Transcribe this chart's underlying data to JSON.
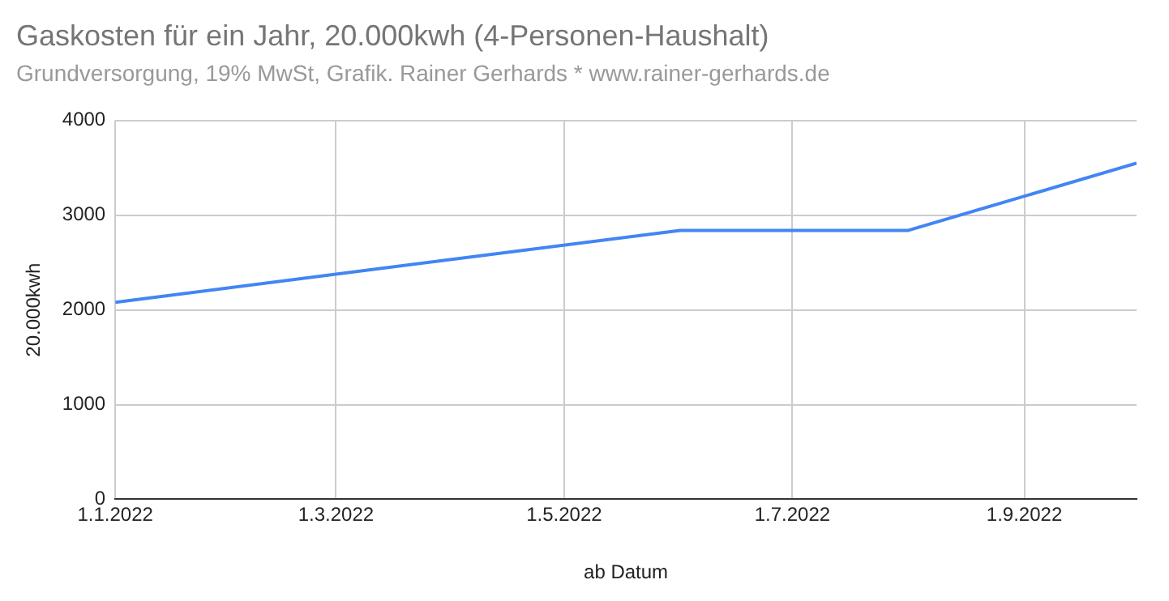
{
  "chart_data": {
    "type": "line",
    "title": "Gaskosten für ein Jahr, 20.000kwh (4-Personen-Haushalt)",
    "subtitle": "Grundversorgung, 19% MwSt, Grafik. Rainer Gerhards * www.rainer-gerhards.de",
    "xlabel": "ab Datum",
    "ylabel": "20.000kwh",
    "x": [
      "2022-01-01",
      "2022-06-01",
      "2022-08-01",
      "2022-10-01"
    ],
    "series": [
      {
        "color": "#4285f4",
        "values": [
          2080,
          2840,
          2840,
          3550
        ]
      }
    ],
    "xlim": [
      "2022-01-01",
      "2022-10-01"
    ],
    "xticks": [
      {
        "value": "2022-01-01",
        "label": "1.1.2022"
      },
      {
        "value": "2022-03-01",
        "label": "1.3.2022"
      },
      {
        "value": "2022-05-01",
        "label": "1.5.2022"
      },
      {
        "value": "2022-07-01",
        "label": "1.7.2022"
      },
      {
        "value": "2022-09-01",
        "label": "1.9.2022"
      }
    ],
    "ylim": [
      0,
      4000
    ],
    "yticks": [
      0,
      1000,
      2000,
      3000,
      4000
    ],
    "grid": true,
    "legend": false,
    "marker": "none",
    "line_style": "solid"
  }
}
